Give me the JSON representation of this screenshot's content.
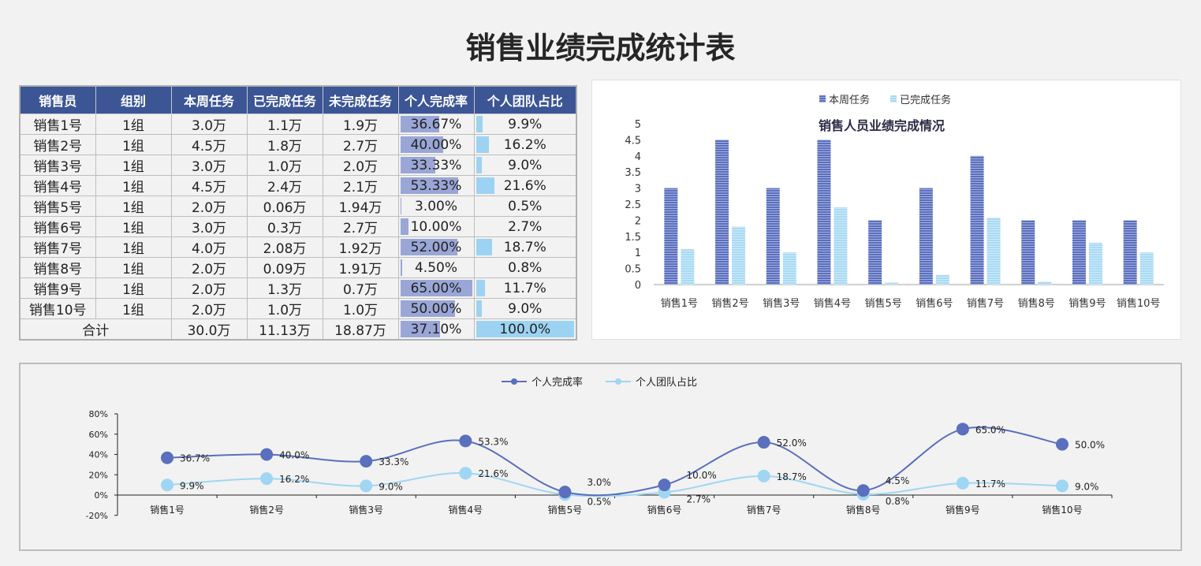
{
  "title": "销售业绩完成统计表",
  "table": {
    "headers": [
      "销售员",
      "组别",
      "本周任务",
      "已完成任务",
      "未完成任务",
      "个人完成率",
      "个人团队占比"
    ],
    "rows": [
      [
        "销售1号",
        "1组",
        "3.0万",
        "1.1万",
        "1.9万",
        "36.67%",
        "9.9%"
      ],
      [
        "销售2号",
        "1组",
        "4.5万",
        "1.8万",
        "2.7万",
        "40.00%",
        "16.2%"
      ],
      [
        "销售3号",
        "1组",
        "3.0万",
        "1.0万",
        "2.0万",
        "33.33%",
        "9.0%"
      ],
      [
        "销售4号",
        "1组",
        "4.5万",
        "2.4万",
        "2.1万",
        "53.33%",
        "21.6%"
      ],
      [
        "销售5号",
        "1组",
        "2.0万",
        "0.06万",
        "1.94万",
        "3.00%",
        "0.5%"
      ],
      [
        "销售6号",
        "1组",
        "3.0万",
        "0.3万",
        "2.7万",
        "10.00%",
        "2.7%"
      ],
      [
        "销售7号",
        "1组",
        "4.0万",
        "2.08万",
        "1.92万",
        "52.00%",
        "18.7%"
      ],
      [
        "销售8号",
        "1组",
        "2.0万",
        "0.09万",
        "1.91万",
        "4.50%",
        "0.8%"
      ],
      [
        "销售9号",
        "1组",
        "2.0万",
        "1.3万",
        "0.7万",
        "65.00%",
        "11.7%"
      ],
      [
        "销售10号",
        "1组",
        "2.0万",
        "1.0万",
        "1.0万",
        "50.00%",
        "9.0%"
      ]
    ],
    "total": [
      "合计",
      "30.0万",
      "11.13万",
      "18.87万",
      "37.10%",
      "100.0%"
    ],
    "colors": {
      "header": "#3b5595",
      "rate_bar": "#9aa6d6",
      "share_bar": "#9dd3f2"
    }
  },
  "chart_data": [
    {
      "type": "bar",
      "title": "销售人员业绩完成情况",
      "categories": [
        "销售1号",
        "销售2号",
        "销售3号",
        "销售4号",
        "销售5号",
        "销售6号",
        "销售7号",
        "销售8号",
        "销售9号",
        "销售10号"
      ],
      "series": [
        {
          "name": "本周任务",
          "color": "#5b6fbf",
          "values": [
            3.0,
            4.5,
            3.0,
            4.5,
            2.0,
            3.0,
            4.0,
            2.0,
            2.0,
            2.0
          ]
        },
        {
          "name": "已完成任务",
          "color": "#a8daf4",
          "values": [
            1.1,
            1.8,
            1.0,
            2.4,
            0.06,
            0.3,
            2.08,
            0.09,
            1.3,
            1.0
          ]
        }
      ],
      "ylim": [
        0,
        5
      ],
      "yticks": [
        "0",
        "0.5",
        "1",
        "1.5",
        "2",
        "2.5",
        "3",
        "3.5",
        "4",
        "4.5",
        "5"
      ],
      "legend": "top"
    },
    {
      "type": "line",
      "categories": [
        "销售1号",
        "销售2号",
        "销售3号",
        "销售4号",
        "销售5号",
        "销售6号",
        "销售7号",
        "销售8号",
        "销售9号",
        "销售10号"
      ],
      "series": [
        {
          "name": "个人完成率",
          "color": "#5a6fbd",
          "values": [
            36.7,
            40.0,
            33.3,
            53.3,
            3.0,
            10.0,
            52.0,
            4.5,
            65.0,
            50.0
          ],
          "labels": [
            "36.7%",
            "40.0%",
            "33.3%",
            "53.3%",
            "3.0%",
            "10.0%",
            "52.0%",
            "4.5%",
            "65.0%",
            "50.0%"
          ]
        },
        {
          "name": "个人团队占比",
          "color": "#9fd6f3",
          "values": [
            9.9,
            16.2,
            9.0,
            21.6,
            0.5,
            2.7,
            18.7,
            0.8,
            11.7,
            9.0
          ],
          "labels": [
            "9.9%",
            "16.2%",
            "9.0%",
            "21.6%",
            "0.5%",
            "2.7%",
            "18.7%",
            "0.8%",
            "11.7%",
            "9.0%"
          ]
        }
      ],
      "ylim": [
        -20,
        80
      ],
      "yticks": [
        "-20%",
        "0%",
        "20%",
        "40%",
        "60%",
        "80%"
      ],
      "smooth": true,
      "legend": "top"
    }
  ]
}
